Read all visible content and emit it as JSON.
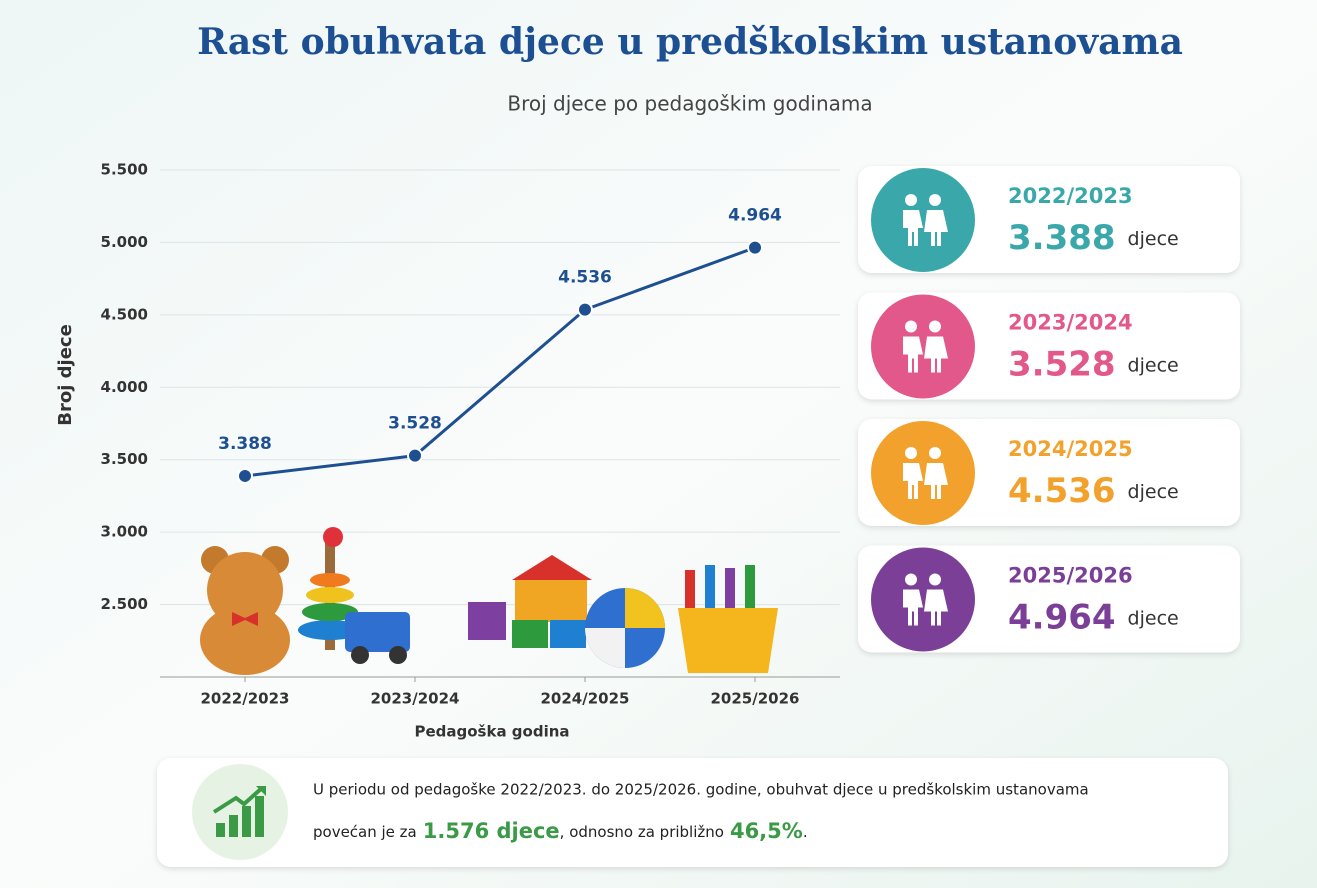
{
  "title": "Rast obuhvata djece u predškolskim ustanovama",
  "subtitle": "Broj djece po pedagoškim godinama",
  "chart_data": {
    "type": "line",
    "x_label": "Pedagoška godina",
    "y_label": "Broj djece",
    "categories": [
      "2022/2023",
      "2023/2024",
      "2024/2025",
      "2025/2026"
    ],
    "values": [
      3388,
      3528,
      4536,
      4964
    ],
    "value_labels": [
      "3.388",
      "3.528",
      "4.536",
      "4.964"
    ],
    "color": "#1e4f91",
    "ylim": [
      2000,
      5500
    ],
    "yticks": [
      {
        "value": 2500,
        "label": "2.500"
      },
      {
        "value": 3000,
        "label": "3.000"
      },
      {
        "value": 3500,
        "label": "3.500"
      },
      {
        "value": 4000,
        "label": "4.000"
      },
      {
        "value": 4500,
        "label": "4.500"
      },
      {
        "value": 5000,
        "label": "5.000"
      },
      {
        "value": 5500,
        "label": "5.500"
      }
    ],
    "grid": true
  },
  "cards": {
    "unit": "djece",
    "colors": [
      "#3aa8ab",
      "#e3588a",
      "#f2a22c",
      "#7b3f98"
    ]
  },
  "summary": {
    "line1": "U periodu od pedagoške 2022/2023. do 2025/2026. godine, obuhvat djece u predškolskim ustanovama",
    "line2_start": "povećan je za",
    "highlight1": "1.576 djece",
    "line2_mid": ", odnosno za približno",
    "highlight2": "46,5%",
    "line2_end": "."
  }
}
